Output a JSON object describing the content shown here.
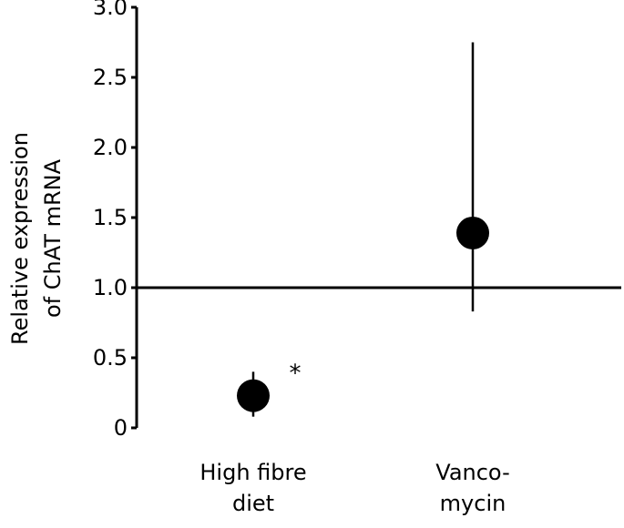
{
  "chart_data": {
    "type": "scatter",
    "ylabel_lines": [
      "Relative expression",
      "of ChAT mRNA"
    ],
    "ylim": [
      0,
      3.0
    ],
    "yticks": [
      "0",
      "0.5",
      "1.0",
      "1.5",
      "2.0",
      "2.5",
      "3.0"
    ],
    "reference_line": 1.0,
    "categories": [
      {
        "label_lines": [
          "High fibre",
          "diet"
        ],
        "value": 0.23,
        "error_low": 0.08,
        "error_high": 0.4,
        "annotation": "*"
      },
      {
        "label_lines": [
          "Vanco-",
          "mycin"
        ],
        "value": 1.39,
        "error_low": 0.83,
        "error_high": 2.75,
        "annotation": ""
      }
    ],
    "grid": false,
    "marker_color": "#000000"
  }
}
